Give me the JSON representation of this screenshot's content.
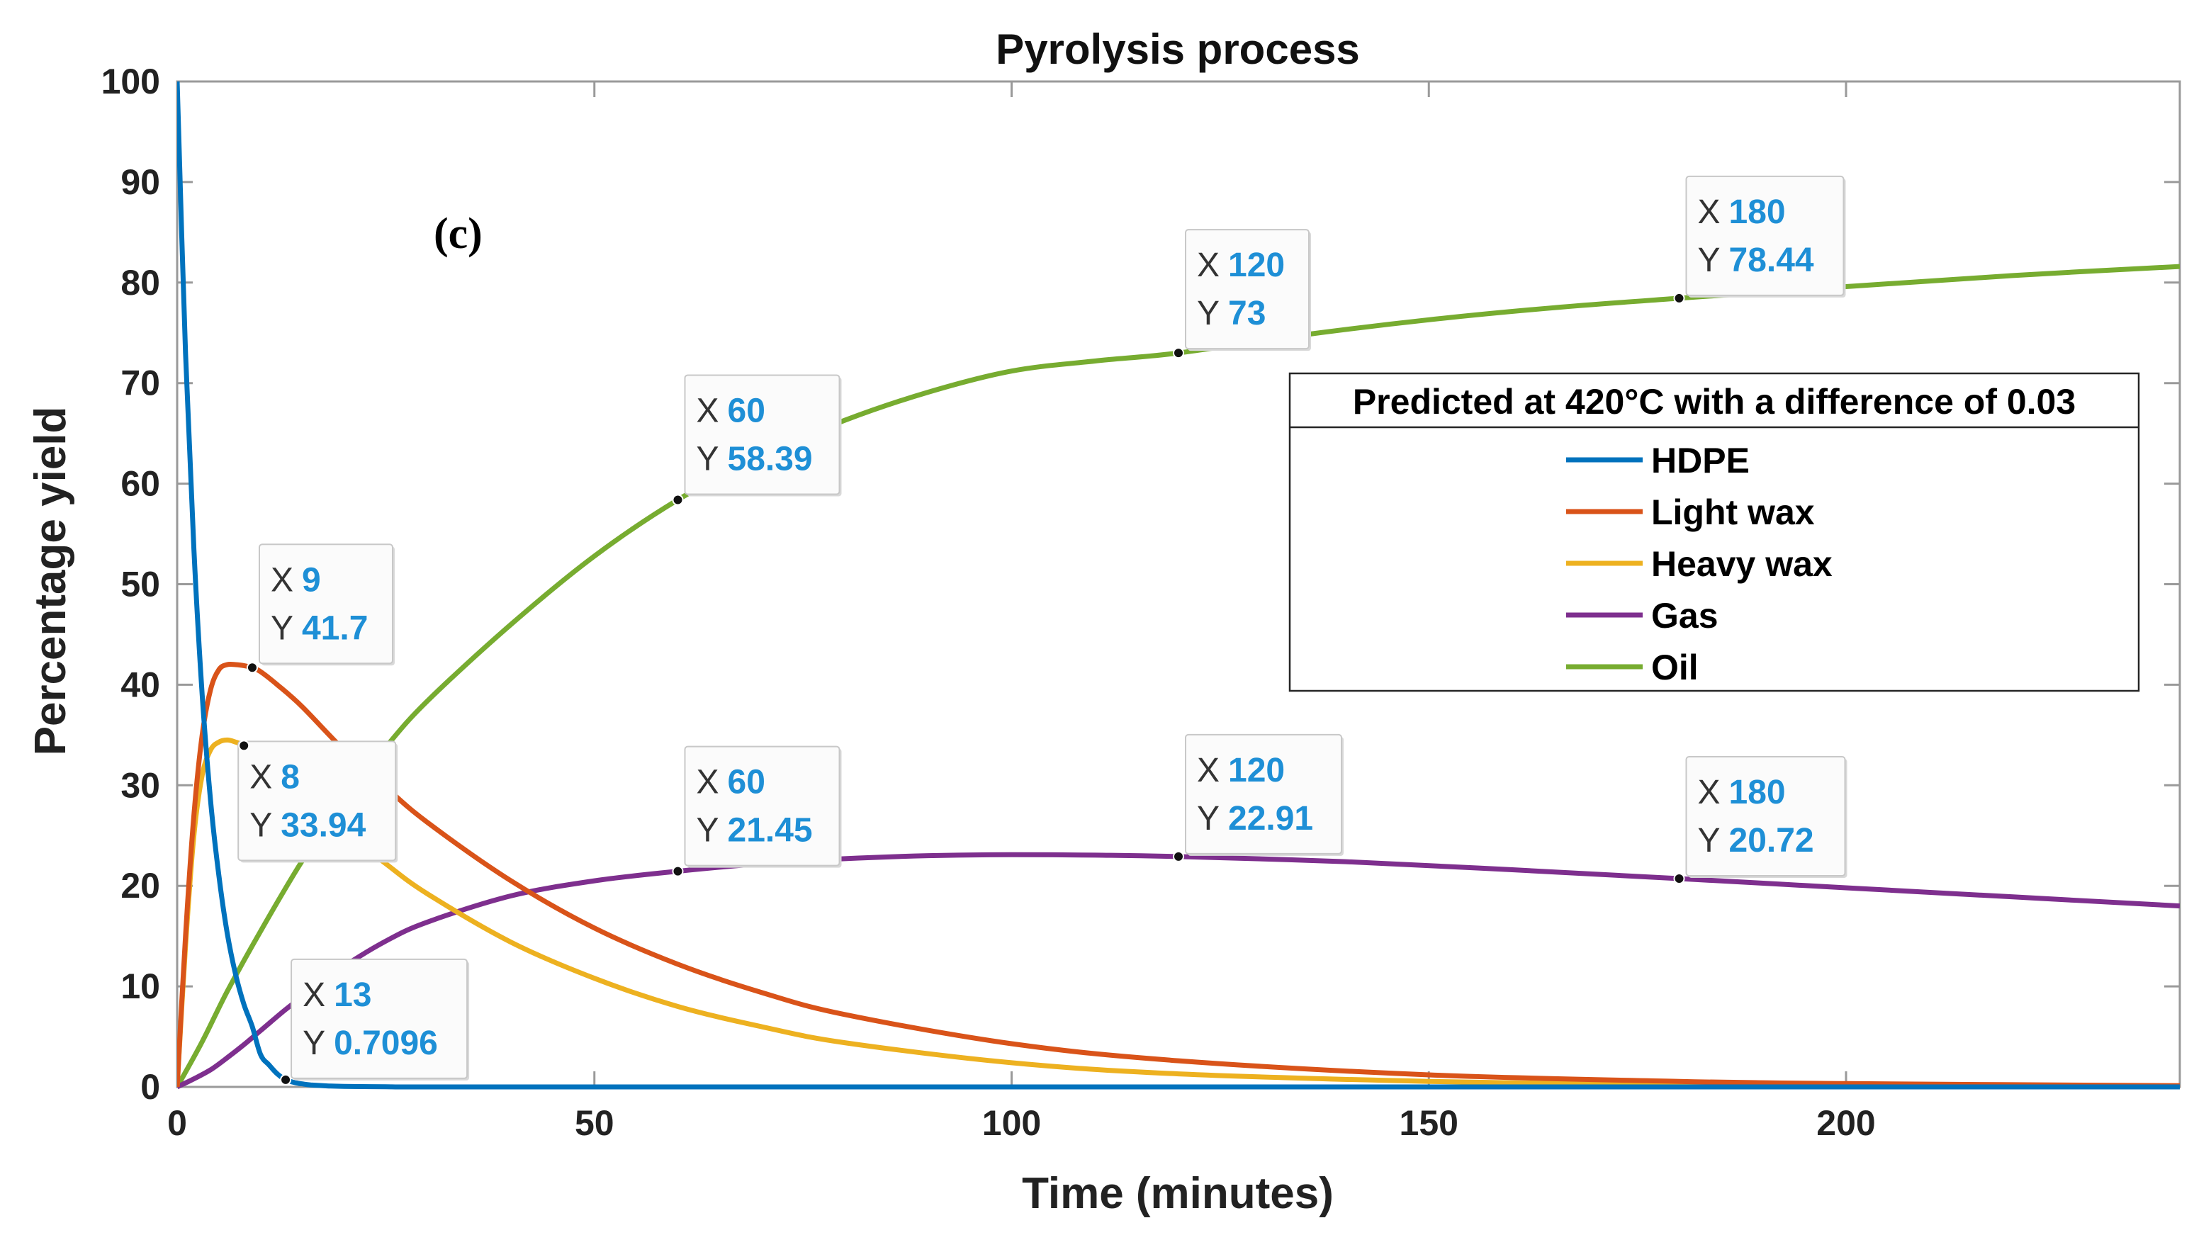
{
  "chart_data": {
    "type": "line",
    "title": "Pyrolysis process",
    "xlabel": "Time (minutes)",
    "ylabel": "Percentage yield",
    "panel_label": "(c)",
    "xlim": [
      0,
      240
    ],
    "ylim": [
      0,
      100
    ],
    "xticks": [
      0,
      50,
      100,
      150,
      200
    ],
    "yticks": [
      0,
      10,
      20,
      30,
      40,
      50,
      60,
      70,
      80,
      90,
      100
    ],
    "grid": false,
    "legend": {
      "title": "Predicted at 420°C with a difference of 0.03",
      "location": "right",
      "entries": [
        "HDPE",
        "Light wax",
        "Heavy wax",
        "Gas",
        "Oil"
      ]
    },
    "series": [
      {
        "name": "HDPE",
        "color": "#0072BD",
        "x": [
          0,
          1,
          2,
          3,
          4,
          5,
          6,
          7,
          8,
          9,
          10,
          11,
          12,
          13,
          14,
          15,
          16,
          18,
          20,
          25,
          30,
          60,
          120,
          180,
          240
        ],
        "y": [
          100,
          73,
          53.5,
          39,
          28.5,
          21,
          15.3,
          11.2,
          8.2,
          6.0,
          3.2,
          2.2,
          1.3,
          0.7096,
          0.45,
          0.3,
          0.2,
          0.1,
          0.05,
          0.02,
          0,
          0,
          0,
          0,
          0
        ]
      },
      {
        "name": "Light wax",
        "color": "#D95319",
        "x": [
          0,
          1,
          2,
          3,
          4,
          5,
          6,
          7,
          8,
          9,
          10,
          12,
          15,
          20,
          25,
          30,
          40,
          50,
          60,
          70,
          80,
          100,
          120,
          150,
          180,
          200,
          240
        ],
        "y": [
          0,
          15,
          27,
          35,
          39.5,
          41.5,
          42,
          42,
          41.9,
          41.7,
          41.3,
          40,
          37.8,
          33.5,
          29.8,
          26.3,
          20.5,
          15.8,
          12.2,
          9.4,
          7.2,
          4.3,
          2.6,
          1.2,
          0.55,
          0.33,
          0.12
        ]
      },
      {
        "name": "Heavy wax",
        "color": "#EDB120",
        "x": [
          0,
          1,
          2,
          3,
          4,
          5,
          6,
          7,
          8,
          10,
          12,
          15,
          20,
          25,
          30,
          40,
          50,
          60,
          70,
          80,
          100,
          120,
          150,
          180,
          200,
          240
        ],
        "y": [
          0,
          14,
          25,
          31,
          33.5,
          34.3,
          34.5,
          34.3,
          33.94,
          32.8,
          31.4,
          29.2,
          25.5,
          22.2,
          19.2,
          14.4,
          10.8,
          8.0,
          6.0,
          4.4,
          2.4,
          1.3,
          0.55,
          0.22,
          0.12,
          0.03
        ]
      },
      {
        "name": "Gas",
        "color": "#7E2F8E",
        "x": [
          0,
          2,
          4,
          6,
          8,
          10,
          13,
          16,
          20,
          25,
          30,
          40,
          50,
          60,
          70,
          80,
          90,
          100,
          110,
          120,
          140,
          160,
          180,
          200,
          220,
          240
        ],
        "y": [
          0,
          0.8,
          1.7,
          2.9,
          4.2,
          5.6,
          7.7,
          9.6,
          12.0,
          14.5,
          16.4,
          19.0,
          20.5,
          21.45,
          22.2,
          22.7,
          23.0,
          23.1,
          23.05,
          22.91,
          22.4,
          21.6,
          20.72,
          19.8,
          18.9,
          18.0
        ]
      },
      {
        "name": "Oil",
        "color": "#77AC30",
        "x": [
          0,
          3,
          6,
          10,
          15,
          20,
          25,
          30,
          40,
          50,
          60,
          70,
          80,
          90,
          100,
          110,
          120,
          135,
          150,
          165,
          180,
          200,
          220,
          240
        ],
        "y": [
          0,
          4.5,
          9.5,
          15.5,
          22.5,
          28.5,
          33.8,
          38.4,
          46.0,
          52.8,
          58.39,
          62.8,
          66.3,
          69.1,
          71.2,
          72.2,
          73.0,
          74.8,
          76.3,
          77.5,
          78.44,
          79.6,
          80.7,
          81.6
        ]
      }
    ],
    "annotations": [
      {
        "x": 9,
        "y": 41.7,
        "x_text": "9",
        "y_text": "41.7"
      },
      {
        "x": 8,
        "y": 33.94,
        "x_text": "8",
        "y_text": "33.94"
      },
      {
        "x": 13,
        "y": 0.7096,
        "x_text": "13",
        "y_text": "0.7096"
      },
      {
        "x": 60,
        "y": 58.39,
        "x_text": "60",
        "y_text": "58.39"
      },
      {
        "x": 120,
        "y": 73,
        "x_text": "120",
        "y_text": "73"
      },
      {
        "x": 180,
        "y": 78.44,
        "x_text": "180",
        "y_text": "78.44"
      },
      {
        "x": 60,
        "y": 21.45,
        "x_text": "60",
        "y_text": "21.45"
      },
      {
        "x": 120,
        "y": 22.91,
        "x_text": "120",
        "y_text": "22.91"
      },
      {
        "x": 180,
        "y": 20.72,
        "x_text": "180",
        "y_text": "20.72"
      }
    ],
    "tooltip_key_x": "X",
    "tooltip_key_y": "Y",
    "tooltip_value_color": "#1E8FD6"
  }
}
